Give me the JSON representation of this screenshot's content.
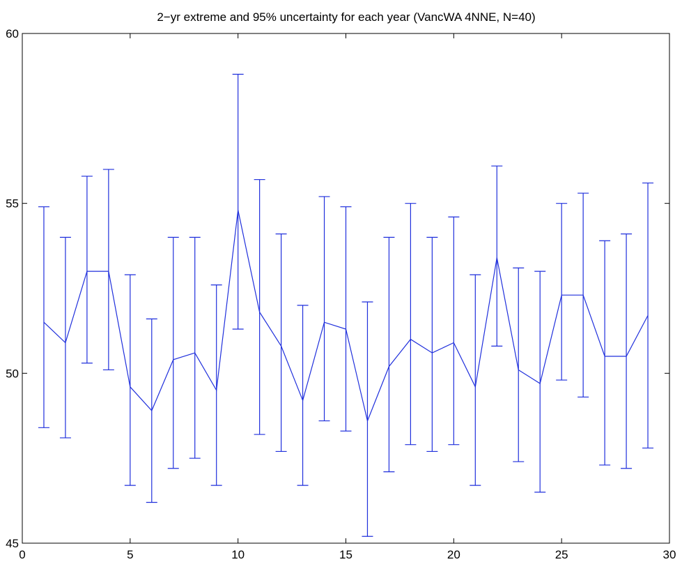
{
  "chart_data": {
    "type": "line",
    "title": "2−yr extreme and 95% uncertainty for each year (VancWA 4NNE, N=40)",
    "xlabel": "",
    "ylabel": "",
    "xlim": [
      0,
      30
    ],
    "ylim": [
      45,
      60
    ],
    "xticks": [
      0,
      5,
      10,
      15,
      20,
      25,
      30
    ],
    "yticks": [
      45,
      50,
      55,
      60
    ],
    "grid": false,
    "series_color": "#1f2fdc",
    "series": [
      {
        "x": [
          1,
          2,
          3,
          4,
          5,
          6,
          7,
          8,
          9,
          10,
          11,
          12,
          13,
          14,
          15,
          16,
          17,
          18,
          19,
          20,
          21,
          22,
          23,
          24,
          25,
          26,
          27,
          28,
          29
        ],
        "values": [
          51.5,
          50.9,
          53.0,
          53.0,
          49.6,
          48.9,
          50.4,
          50.6,
          49.5,
          54.8,
          51.8,
          50.8,
          49.2,
          51.5,
          51.3,
          48.6,
          50.2,
          51.0,
          50.6,
          50.9,
          49.6,
          53.4,
          50.1,
          49.7,
          52.3,
          52.3,
          50.5,
          50.5,
          51.7
        ],
        "lower": [
          48.4,
          48.1,
          50.3,
          50.1,
          46.7,
          46.2,
          47.2,
          47.5,
          46.7,
          51.3,
          48.2,
          47.7,
          46.7,
          48.6,
          48.3,
          45.2,
          47.1,
          47.9,
          47.7,
          47.9,
          46.7,
          50.8,
          47.4,
          46.5,
          49.8,
          49.3,
          47.3,
          47.2,
          47.8
        ],
        "upper": [
          54.9,
          54.0,
          55.8,
          56.0,
          52.9,
          51.6,
          54.0,
          54.0,
          52.6,
          58.8,
          55.7,
          54.1,
          52.0,
          55.2,
          54.9,
          52.1,
          54.0,
          55.0,
          54.0,
          54.6,
          52.9,
          56.1,
          53.1,
          53.0,
          55.0,
          55.3,
          53.9,
          54.1,
          55.6
        ]
      }
    ]
  }
}
